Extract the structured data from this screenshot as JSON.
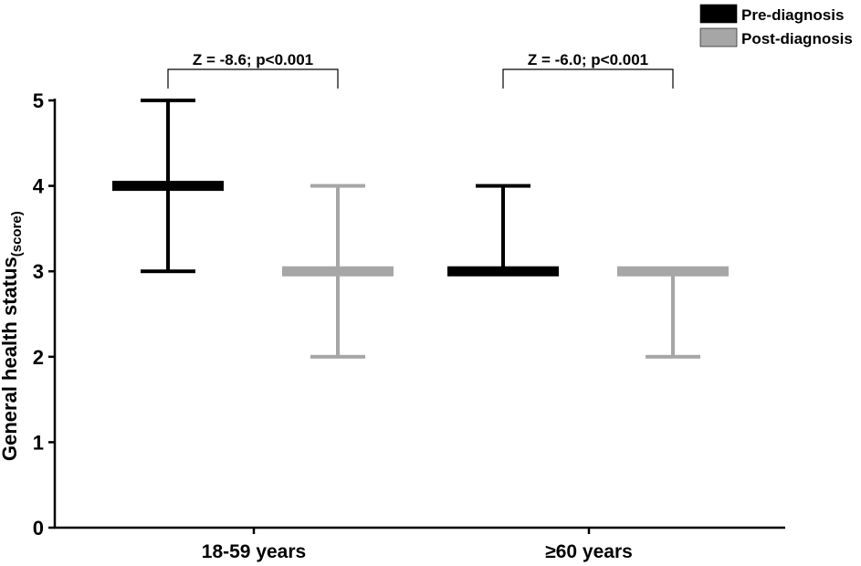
{
  "chart_data": {
    "type": "median-range",
    "title": "",
    "ylabel": "General health status",
    "ylabel_subscript": "(score)",
    "xlabel": "",
    "ylim": [
      0,
      5
    ],
    "yticks": [
      "0",
      "1",
      "2",
      "3",
      "4",
      "5"
    ],
    "categories": [
      "18-59 years",
      "≥60 years"
    ],
    "series": [
      {
        "name": "Pre-diagnosis",
        "color": "#000000",
        "median": [
          4,
          3
        ],
        "low": [
          3,
          3
        ],
        "high": [
          5,
          4
        ]
      },
      {
        "name": "Post-diagnosis",
        "color": "#a6a6a6",
        "median": [
          3,
          3
        ],
        "low": [
          2,
          2
        ],
        "high": [
          4,
          3
        ]
      }
    ],
    "annotations": [
      "Z = -8.6; p<0.001",
      "Z = -6.0; p<0.001"
    ],
    "legend_position": "top-right",
    "grid": false
  }
}
